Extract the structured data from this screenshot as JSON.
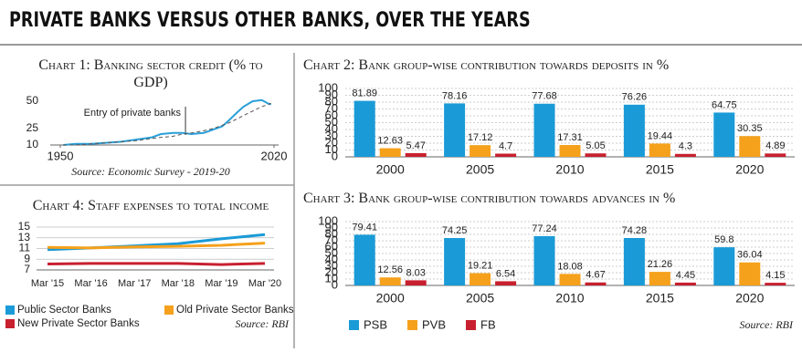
{
  "title": "PRIVATE BANKS VERSUS OTHER BANKS, OVER THE YEARS",
  "chart_data": [
    {
      "type": "line",
      "title": "Chart 1: Banking sector credit (% to GDP)",
      "x": [
        1951,
        1955,
        1960,
        1965,
        1970,
        1975,
        1980,
        1983,
        1987,
        1990,
        1993,
        1997,
        2000,
        2003,
        2005,
        2008,
        2010,
        2013,
        2016,
        2018,
        2019
      ],
      "series": [
        {
          "color": "#2a9fd8",
          "values": [
            10,
            11,
            11,
            12,
            13,
            15,
            17,
            20,
            21,
            21,
            20,
            21,
            24,
            27,
            32,
            40,
            45,
            50,
            51,
            48,
            47
          ]
        },
        {
          "color": "#555555",
          "style": "dashed",
          "values": [
            10,
            10,
            11,
            12,
            13,
            14,
            16,
            17,
            18,
            20,
            21,
            23,
            25,
            28,
            30,
            34,
            37,
            41,
            45,
            47,
            48
          ]
        }
      ],
      "xlim": [
        1950,
        2020
      ],
      "xticks": [
        1950,
        2020
      ],
      "ylim": [
        10,
        55
      ],
      "yticks": [
        10,
        25,
        50
      ],
      "grid": false,
      "annotations": [
        {
          "text": "Entry of private banks",
          "x": 1991
        }
      ],
      "source": "Source: Economic Survey - 2019-20"
    },
    {
      "type": "bar",
      "title": "Chart 2: Bank group-wise contribution towards deposits in %",
      "categories": [
        "2000",
        "2005",
        "2010",
        "2015",
        "2020"
      ],
      "series": [
        {
          "color": "#1a9bd7",
          "values": [
            81.89,
            78.16,
            77.68,
            76.26,
            64.75
          ]
        },
        {
          "color": "#f5a11c",
          "values": [
            12.63,
            17.12,
            17.31,
            19.44,
            30.35
          ]
        },
        {
          "color": "#c8202f",
          "values": [
            5.47,
            4.7,
            5.05,
            4.3,
            4.89
          ]
        }
      ],
      "ylim": [
        0,
        100
      ],
      "yticks": [
        0,
        10,
        20,
        30,
        40,
        50,
        60,
        70,
        80,
        90,
        100
      ],
      "grid": true
    },
    {
      "type": "bar",
      "title": "Chart 3: Bank group-wise contribution towards advances in %",
      "categories": [
        "2000",
        "2005",
        "2010",
        "2015",
        "2020"
      ],
      "series": [
        {
          "name": "PSB",
          "color": "#1a9bd7",
          "values": [
            79.41,
            74.25,
            77.24,
            74.28,
            59.8
          ]
        },
        {
          "name": "PVB",
          "color": "#f5a11c",
          "values": [
            12.56,
            19.21,
            18.08,
            21.26,
            36.04
          ]
        },
        {
          "name": "FB",
          "color": "#c8202f",
          "values": [
            8.03,
            6.54,
            4.67,
            4.45,
            4.15
          ]
        }
      ],
      "ylim": [
        0,
        100
      ],
      "yticks": [
        0,
        10,
        20,
        30,
        40,
        50,
        60,
        70,
        80,
        90,
        100
      ],
      "grid": true,
      "source": "Source: RBI"
    },
    {
      "type": "line",
      "title": "Chart 4: Staff expenses to total income",
      "categories": [
        "Mar '15",
        "Mar '16",
        "Mar '17",
        "Mar '18",
        "Mar '19",
        "Mar '20"
      ],
      "series": [
        {
          "name": "Public Sector Banks",
          "color": "#1a9bd7",
          "values": [
            10.8,
            11.1,
            11.5,
            11.9,
            12.8,
            13.6
          ]
        },
        {
          "name": "Old Private Sector Banks",
          "color": "#f5a11c",
          "values": [
            11.2,
            11.1,
            11.3,
            11.4,
            11.6,
            12.0
          ]
        },
        {
          "name": "New Private Sector Banks",
          "color": "#c8202f",
          "values": [
            8.1,
            8.2,
            8.2,
            8.2,
            8.0,
            8.2
          ]
        }
      ],
      "ylim": [
        7,
        15
      ],
      "yticks": [
        7,
        9,
        11,
        13,
        15
      ],
      "grid": true,
      "source": "Source: RBI"
    }
  ]
}
